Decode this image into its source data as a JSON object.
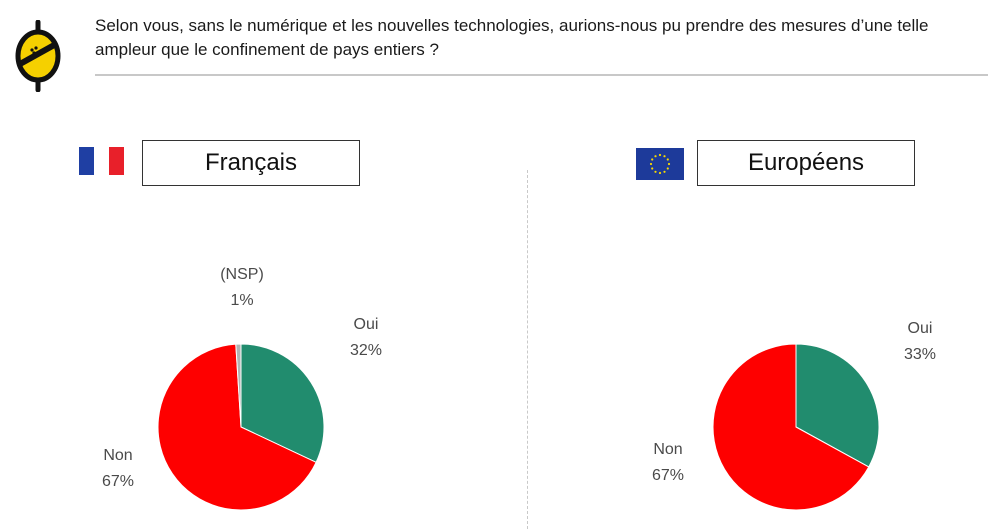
{
  "header": {
    "question": "Selon vous, sans le numérique et les nouvelles technologies, aurions-nous pu prendre des mesures d’une telle ampleur que le confinement de pays entiers ?"
  },
  "colors": {
    "oui": "#218c6e",
    "non": "#fe0000",
    "nsp": "#b3b3b3",
    "logo_yellow": "#f5d000"
  },
  "icons": {
    "logo": "lightbulb-logo-icon",
    "flag_fr": "flag-france-icon",
    "flag_eu": "flag-eu-icon"
  },
  "panels": [
    {
      "title": "Français"
    },
    {
      "title": "Européens"
    }
  ],
  "chart_data": [
    {
      "type": "pie",
      "title": "Français",
      "categories": [
        "Oui",
        "Non",
        "(NSP)"
      ],
      "values": [
        32,
        67,
        1
      ],
      "labels": [
        {
          "name": "Oui",
          "value": "32%"
        },
        {
          "name": "Non",
          "value": "67%"
        },
        {
          "name": "(NSP)",
          "value": "1%"
        }
      ]
    },
    {
      "type": "pie",
      "title": "Européens",
      "categories": [
        "Oui",
        "Non"
      ],
      "values": [
        33,
        67
      ],
      "labels": [
        {
          "name": "Oui",
          "value": "33%"
        },
        {
          "name": "Non",
          "value": "67%"
        }
      ]
    }
  ]
}
